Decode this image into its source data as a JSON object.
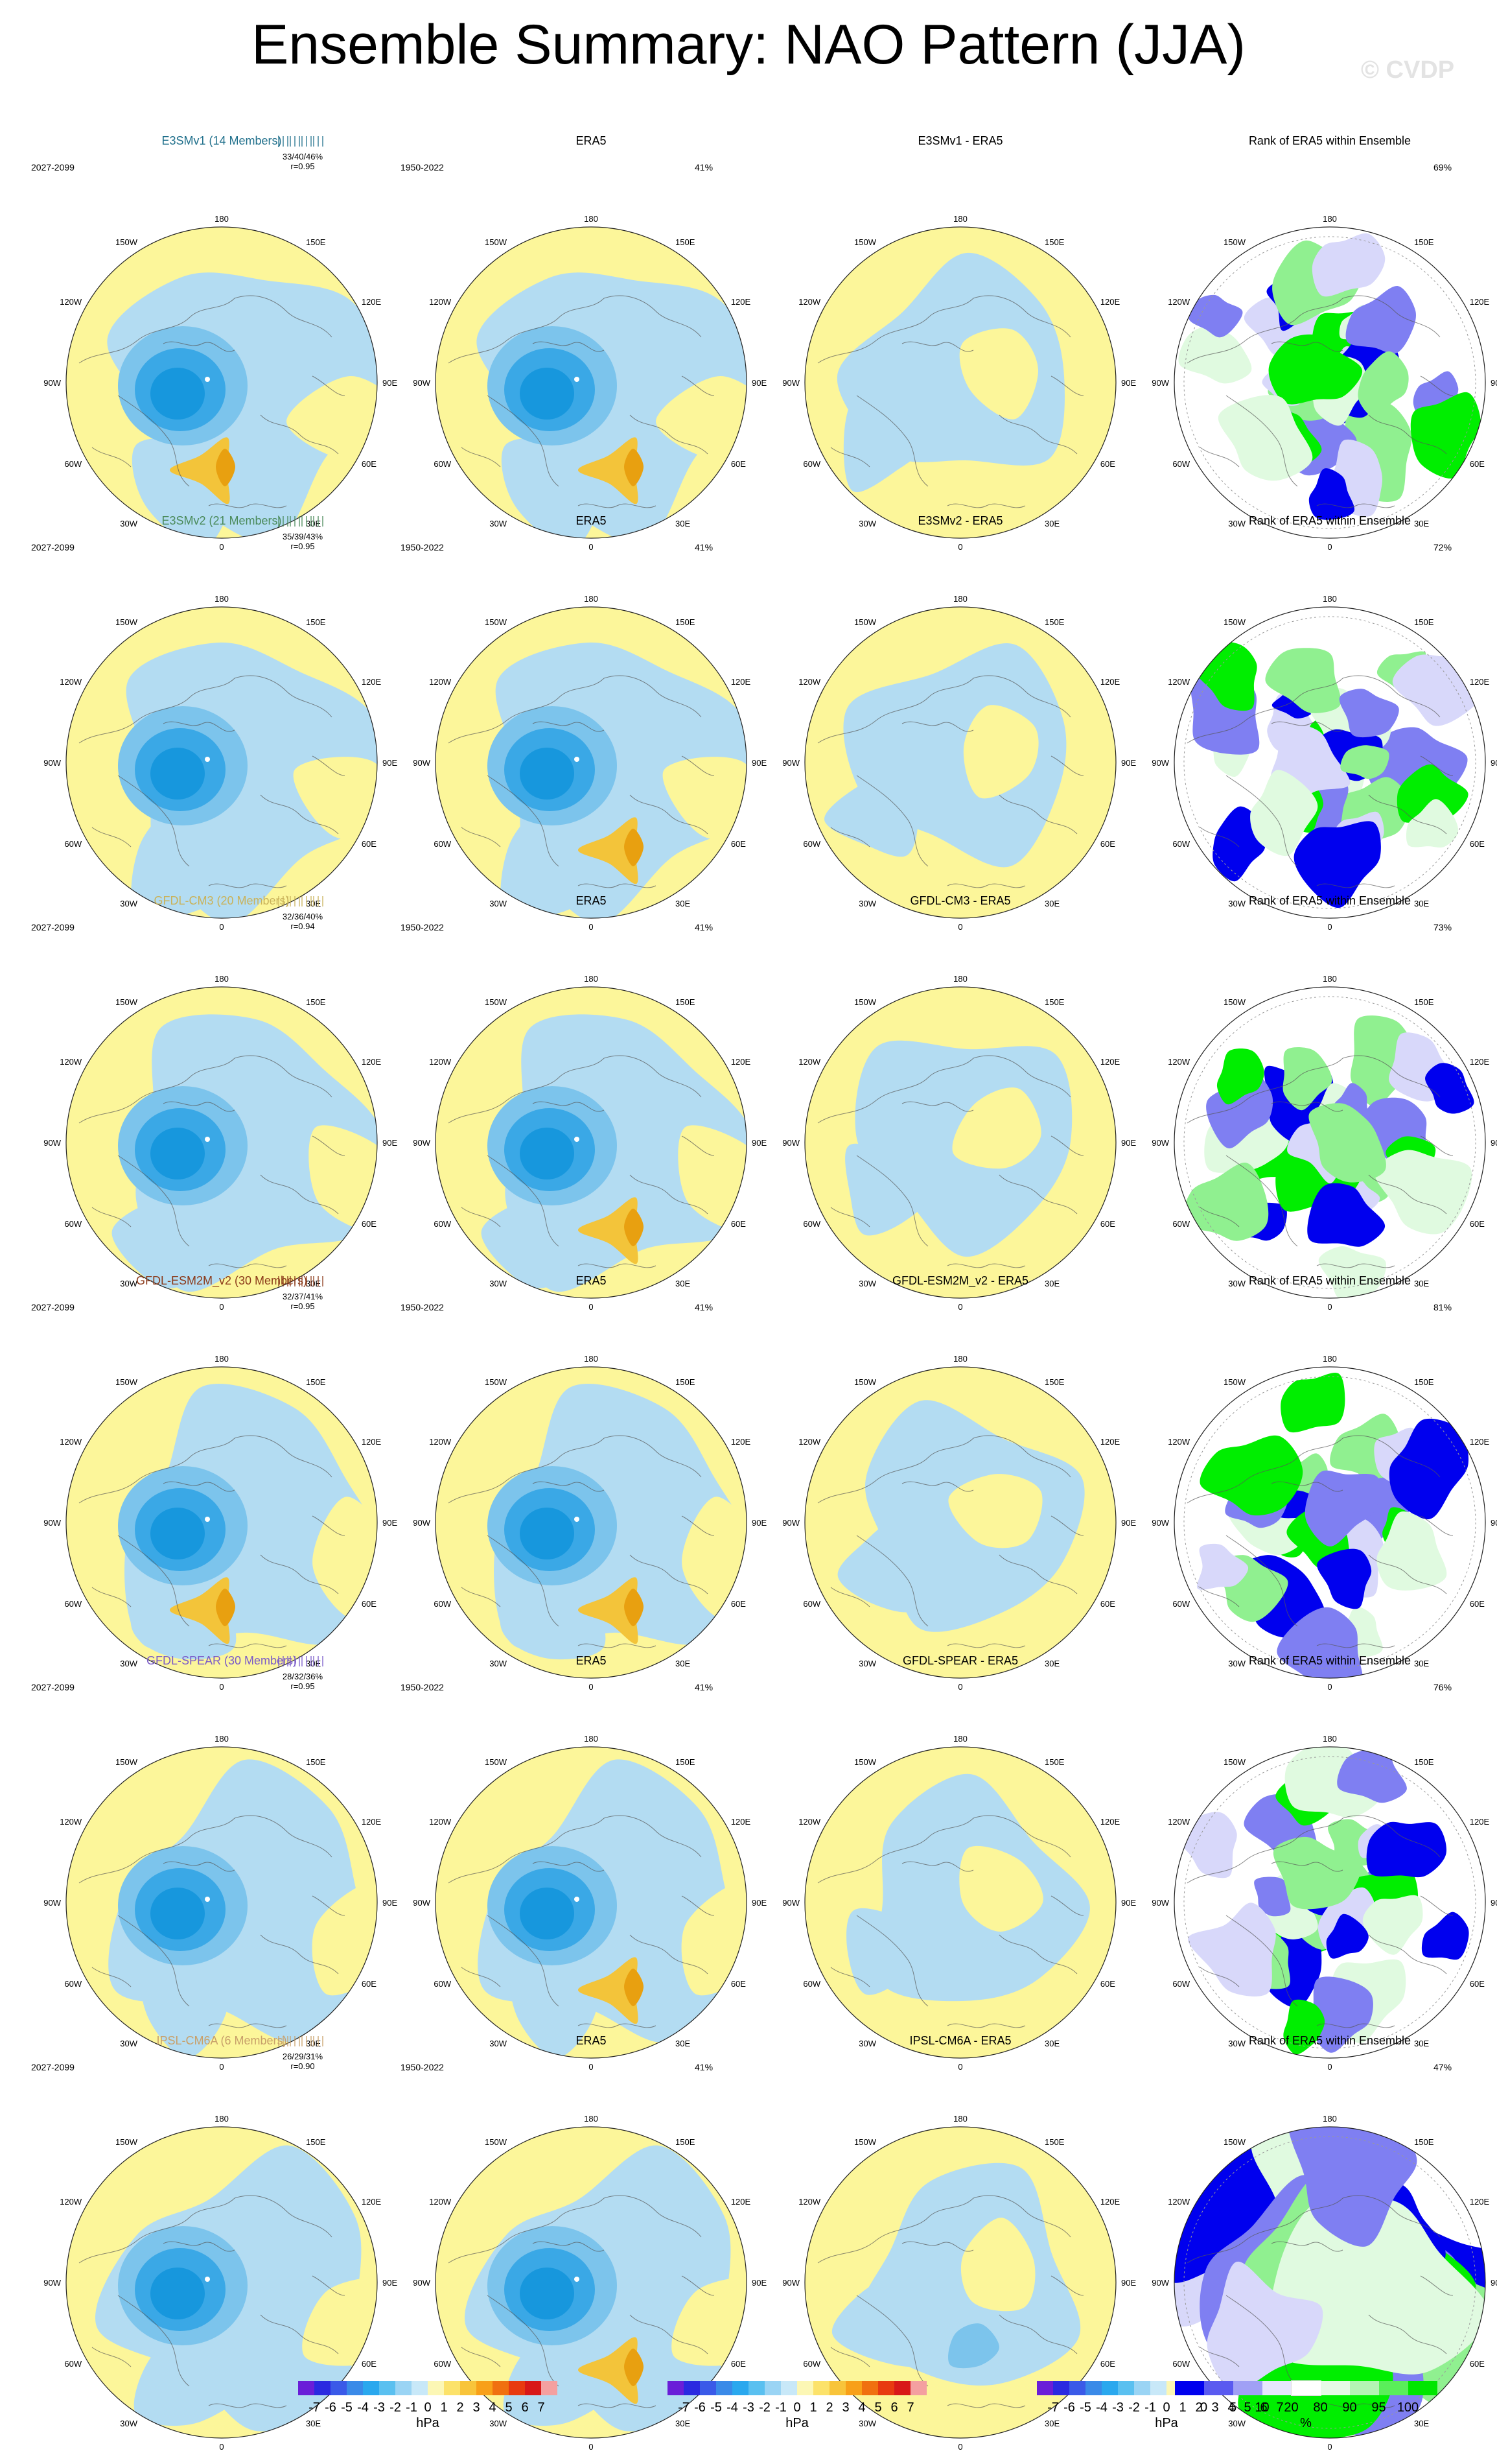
{
  "title": "Ensemble Summary: NAO Pattern (JJA)",
  "watermark": "© CVDP",
  "tick_labels": {
    "top": "180",
    "bottom": "0",
    "left_upper": "150W",
    "right_upper": "150E",
    "left_mid_upper": "120W",
    "right_mid_upper": "120E",
    "left_mid": "90W",
    "right_mid": "90E",
    "left_mid_lower": "60W",
    "right_mid_lower": "60E",
    "left_lower": "30W",
    "right_lower": "30E"
  },
  "colors": {
    "positive_light": "#fcf69a",
    "negative_light": "#b3dcf2",
    "negative_mid": "#7cc4ec",
    "negative_dark": "#3aa8e6",
    "negative_core": "#1797dd",
    "positive_mid": "#f3c43a",
    "positive_dark": "#e8a010",
    "rank_blue_dark": "#0000ee",
    "rank_blue_mid": "#7f7ff2",
    "rank_blue_light": "#d8d8fa",
    "rank_green_dark": "#00ee00",
    "rank_green_mid": "#90f090",
    "rank_green_light": "#e0fae0"
  },
  "rows": [
    {
      "model": "E3SMv1 (14 Members)",
      "model_color": "#1f6f8b",
      "period": "2027-2099",
      "stats_pct": "33/40/46%",
      "stats_r": "r=0.95",
      "obs_title": "ERA5",
      "obs_period": "1950-2022",
      "obs_pct": "41%",
      "diff_title": "E3SMv1 - ERA5",
      "rank_title": "Rank of ERA5 within Ensemble",
      "rank_pct": "69%"
    },
    {
      "model": "E3SMv2 (21 Members)",
      "model_color": "#4a8a5a",
      "period": "2027-2099",
      "stats_pct": "35/39/43%",
      "stats_r": "r=0.95",
      "obs_title": "ERA5",
      "obs_period": "1950-2022",
      "obs_pct": "41%",
      "diff_title": "E3SMv2 - ERA5",
      "rank_title": "Rank of ERA5 within Ensemble",
      "rank_pct": "72%"
    },
    {
      "model": "GFDL-CM3 (20 Members)",
      "model_color": "#c9b25a",
      "period": "2027-2099",
      "stats_pct": "32/36/40%",
      "stats_r": "r=0.94",
      "obs_title": "ERA5",
      "obs_period": "1950-2022",
      "obs_pct": "41%",
      "diff_title": "GFDL-CM3 - ERA5",
      "rank_title": "Rank of ERA5 within Ensemble",
      "rank_pct": "73%"
    },
    {
      "model": "GFDL-ESM2M_v2 (30 Members)",
      "model_color": "#8b3a1a",
      "period": "2027-2099",
      "stats_pct": "32/37/41%",
      "stats_r": "r=0.95",
      "obs_title": "ERA5",
      "obs_period": "1950-2022",
      "obs_pct": "41%",
      "diff_title": "GFDL-ESM2M_v2 - ERA5",
      "rank_title": "Rank of ERA5 within Ensemble",
      "rank_pct": "81%"
    },
    {
      "model": "GFDL-SPEAR (30 Members)",
      "model_color": "#7a5ac8",
      "period": "2027-2099",
      "stats_pct": "28/32/36%",
      "stats_r": "r=0.95",
      "obs_title": "ERA5",
      "obs_period": "1950-2022",
      "obs_pct": "41%",
      "diff_title": "GFDL-SPEAR - ERA5",
      "rank_title": "Rank of ERA5 within Ensemble",
      "rank_pct": "76%"
    },
    {
      "model": "IPSL-CM6A (6 Members)",
      "model_color": "#c8a06a",
      "period": "2027-2099",
      "stats_pct": "26/29/31%",
      "stats_r": "r=0.90",
      "obs_title": "ERA5",
      "obs_period": "1950-2022",
      "obs_pct": "41%",
      "diff_title": "IPSL-CM6A - ERA5",
      "rank_title": "Rank of ERA5 within Ensemble",
      "rank_pct": "47%"
    }
  ],
  "colorbar_hpa": {
    "ticks": [
      "-7",
      "-6",
      "-5",
      "-4",
      "-3",
      "-2",
      "-1",
      "0",
      "1",
      "2",
      "3",
      "4",
      "5",
      "6",
      "7"
    ],
    "unit": "hPa",
    "colors": [
      "#6a1ed8",
      "#2a2ae0",
      "#3a5ae8",
      "#3a8ae8",
      "#2aa8ee",
      "#5ac0f0",
      "#9ad4f4",
      "#c8e8f8",
      "#fcf7b5",
      "#fce26a",
      "#f8c43a",
      "#f8a018",
      "#f07010",
      "#e83a10",
      "#d81818",
      "#f4a0a0"
    ]
  },
  "colorbar_rank": {
    "ticks": [
      "0",
      "5",
      "10",
      "20",
      "80",
      "90",
      "95",
      "100"
    ],
    "unit": "%",
    "colors": [
      "#0000ee",
      "#5a5af0",
      "#a0a0f5",
      "#e6e6fc",
      "#ffffff",
      "#e6fae6",
      "#b4f4b4",
      "#5aee5a",
      "#00e600"
    ]
  }
}
